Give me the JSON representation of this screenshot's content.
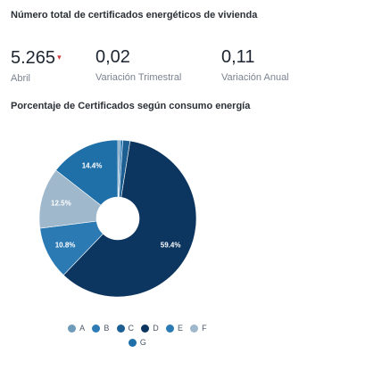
{
  "header": {
    "title": "Número total de certificados energéticos de vivienda"
  },
  "kpis": [
    {
      "value": "5.265",
      "delta": "▾",
      "label": "Abril"
    },
    {
      "value": "0,02",
      "label": "Variación Trimestral"
    },
    {
      "value": "0,11",
      "label": "Variación Anual"
    }
  ],
  "chart_title": "Porcentaje de Certificados según consumo energía",
  "chart_data": {
    "type": "pie",
    "title": "Porcentaje de Certificados según consumo energía",
    "slices": [
      {
        "label": "A",
        "value": 0.5,
        "color": "#6f9bbb"
      },
      {
        "label": "B",
        "value": 0.5,
        "color": "#2f7bb6"
      },
      {
        "label": "C",
        "value": 1.5,
        "color": "#1d5f93"
      },
      {
        "label": "D",
        "value": 59.4,
        "color": "#0c355f",
        "text": "59.4%"
      },
      {
        "label": "E",
        "value": 10.8,
        "color": "#2b7ab3",
        "text": "10.8%"
      },
      {
        "label": "F",
        "value": 12.5,
        "color": "#9fb8cc",
        "text": "12.5%"
      },
      {
        "label": "G",
        "value": 14.4,
        "color": "#1f6fa8",
        "text": "14.4%"
      }
    ],
    "legend_position": "bottom"
  },
  "legend": {
    "row1": [
      "A",
      "B",
      "C",
      "D",
      "E",
      "F"
    ],
    "row2": [
      "G"
    ]
  }
}
